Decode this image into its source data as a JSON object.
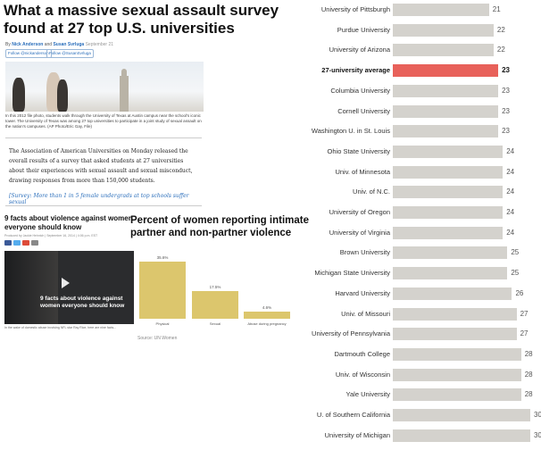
{
  "article": {
    "headline": "What a massive sexual assault survey found at 27 top U.S. universities",
    "byline_prefix": "By",
    "author1": "Nick Anderson",
    "byline_and": "and",
    "author2": "Susan Svrluga",
    "date": "September 21",
    "follow1": "Follow @nickanderson",
    "follow2": "Follow @SusanSvrluga",
    "photo_caption": "In this 2012 file photo, students walk through the University of Texas at Austin campus near the school's iconic tower. The University of Texas was among 27 top universities to participate in a joint study of sexual assault on the nation's campuses. (AP Photo/Eric Gay, File)",
    "body": "The Association of American Universities on Monday released the overall results of a survey that asked students at 27 universities about their experiences with sexual assault and sexual misconduct, drawing responses from more than 150,000 students.",
    "related_link": "[Survey: More than 1 in 5 female undergrads at top schools suffer sexual"
  },
  "video": {
    "title": "9 facts about violence against women everyone should know",
    "meta": "Produced by Jackie Heinrich | September 16, 2014 | 4:06 p.m. EST",
    "overlay": "9 facts about violence against women everyone should know",
    "caption": "In the wake of domestic abuse involving NFL star Ray Rice, here are nine facts..."
  },
  "mini_chart": {
    "title": "Percent of women reporting intimate partner and non-partner violence",
    "source": "Source: UN Women",
    "bars": [
      {
        "value": 35.6,
        "label": "35.6%",
        "category": "Physical"
      },
      {
        "value": 17.5,
        "label": "17.5%",
        "category": "Sexual"
      },
      {
        "value": 4.6,
        "label": "4.6%",
        "category": "Abuse during pregnancy"
      }
    ]
  },
  "chart_data": {
    "type": "bar",
    "orientation": "horizontal",
    "highlight_color": "#e8615a",
    "bar_color": "#d4d2cd",
    "categories": [
      "University of Pittsburgh",
      "Purdue University",
      "University of Arizona",
      "27-university average",
      "Columbia University",
      "Cornell University",
      "Washington U. in St. Louis",
      "Ohio State University",
      "Univ. of Minnesota",
      "Univ. of N.C.",
      "University of Oregon",
      "University of Virginia",
      "Brown University",
      "Michigan State University",
      "Harvard University",
      "Univ. of Missouri",
      "University of Pennsylvania",
      "Dartmouth College",
      "Univ. of Wisconsin",
      "Yale University",
      "U. of Southern California",
      "University of Michigan"
    ],
    "values": [
      21,
      22,
      22,
      23,
      23,
      23,
      23,
      24,
      24,
      24,
      24,
      24,
      25,
      25,
      26,
      27,
      27,
      28,
      28,
      28,
      30,
      30
    ],
    "highlight_index": 3,
    "xlim": [
      0,
      30
    ]
  }
}
